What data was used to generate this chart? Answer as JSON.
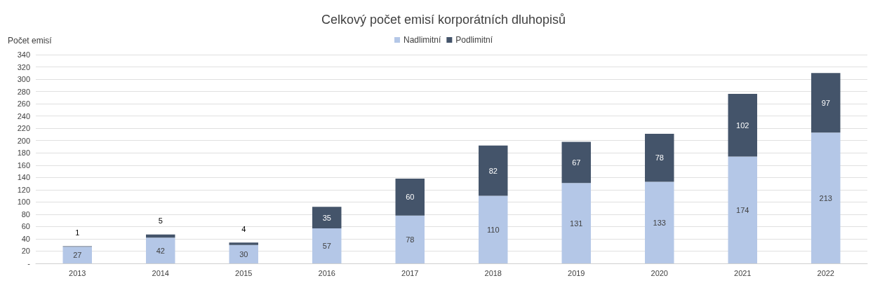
{
  "chart_data": {
    "type": "bar",
    "title": "Celkový počet emisí korporátních dluhopisů",
    "ylabel": "Počet emisí",
    "categories": [
      "2013",
      "2014",
      "2015",
      "2016",
      "2017",
      "2018",
      "2019",
      "2020",
      "2021",
      "2022"
    ],
    "series": [
      {
        "name": "Nadlimitní",
        "color": "#b4c7e7",
        "values": [
          27,
          42,
          30,
          57,
          78,
          110,
          131,
          133,
          174,
          213
        ]
      },
      {
        "name": "Podlimitní",
        "color": "#44546a",
        "values": [
          1,
          5,
          4,
          35,
          60,
          82,
          67,
          78,
          102,
          97
        ]
      }
    ],
    "stacked": true,
    "data_labels": true,
    "ylim": [
      0,
      340
    ],
    "yticks": [
      {
        "value": 0,
        "label": "-"
      },
      20,
      40,
      60,
      80,
      100,
      120,
      140,
      160,
      180,
      200,
      220,
      240,
      260,
      280,
      300,
      320,
      340
    ],
    "grid": "y",
    "legend": "top"
  }
}
